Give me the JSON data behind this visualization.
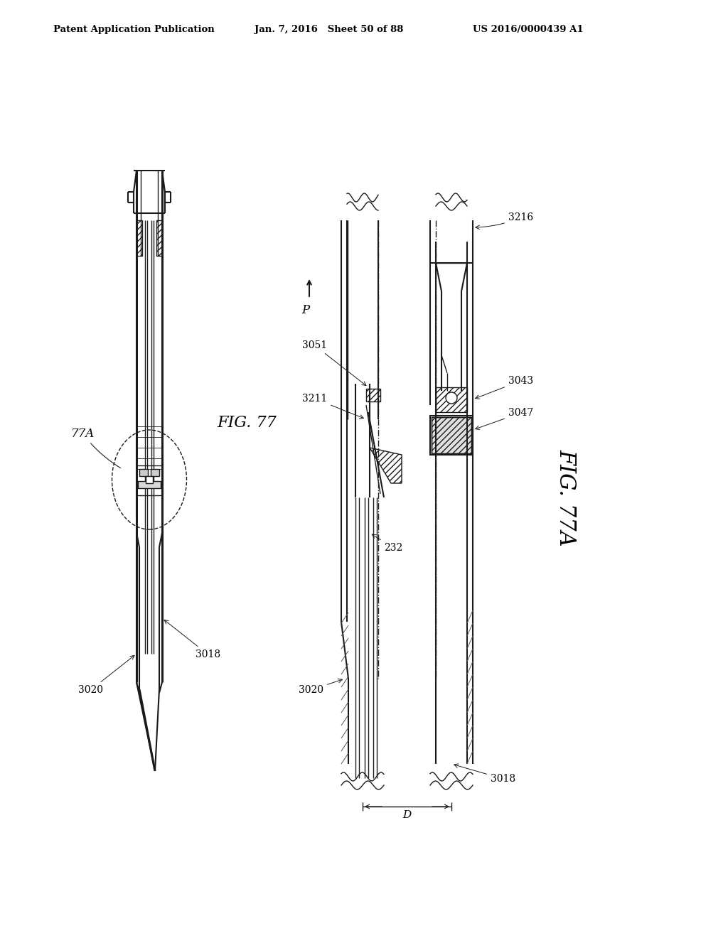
{
  "bg_color": "#ffffff",
  "header_left": "Patent Application Publication",
  "header_center": "Jan. 7, 2016   Sheet 50 of 88",
  "header_right": "US 2016/0000439 A1",
  "fig77_label": "FIG. 77",
  "fig77a_label": "FIG. 77A",
  "line_color": "#1a1a1a"
}
